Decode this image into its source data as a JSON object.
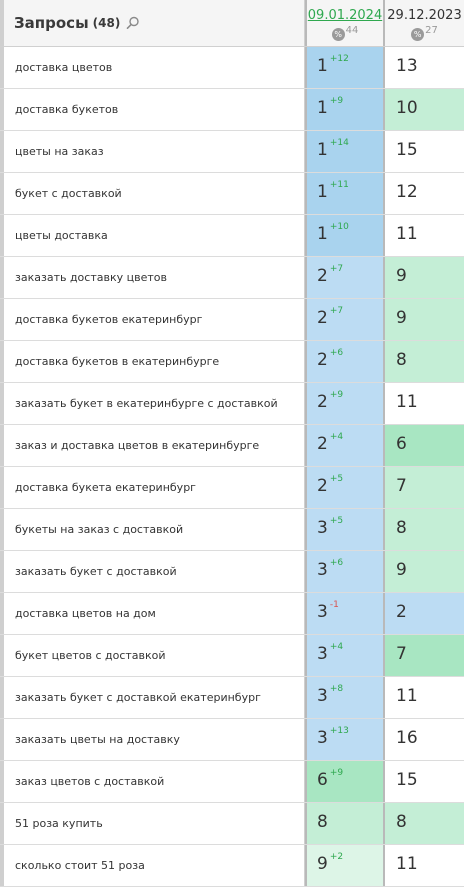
{
  "header": {
    "title": "Запросы",
    "count": "(48)",
    "col1": {
      "date": "09.01.2024",
      "pct_label": "%",
      "pct_value": "44"
    },
    "col2": {
      "date": "29.12.2023",
      "pct_label": "%",
      "pct_value": "27"
    }
  },
  "colors": {
    "top1": "#a9d3ee",
    "top3": "#bcdcf3",
    "top5": "#a8e6c2",
    "top10": "#c4eed6",
    "delta_up": "#2fa84f",
    "delta_down": "#d9534f",
    "active_date": "#2fa84f"
  },
  "rows": [
    {
      "query": "доставка цветов",
      "pos1": "1",
      "delta": "+12",
      "dir": "up",
      "pos2": "13",
      "bg1": "top1",
      "bg2": "none"
    },
    {
      "query": "доставка букетов",
      "pos1": "1",
      "delta": "+9",
      "dir": "up",
      "pos2": "10",
      "bg1": "top1",
      "bg2": "top10"
    },
    {
      "query": "цветы на заказ",
      "pos1": "1",
      "delta": "+14",
      "dir": "up",
      "pos2": "15",
      "bg1": "top1",
      "bg2": "none"
    },
    {
      "query": "букет с доставкой",
      "pos1": "1",
      "delta": "+11",
      "dir": "up",
      "pos2": "12",
      "bg1": "top1",
      "bg2": "none"
    },
    {
      "query": "цветы доставка",
      "pos1": "1",
      "delta": "+10",
      "dir": "up",
      "pos2": "11",
      "bg1": "top1",
      "bg2": "none"
    },
    {
      "query": "заказать доставку цветов",
      "pos1": "2",
      "delta": "+7",
      "dir": "up",
      "pos2": "9",
      "bg1": "top3",
      "bg2": "top10"
    },
    {
      "query": "доставка букетов екатеринбург",
      "pos1": "2",
      "delta": "+7",
      "dir": "up",
      "pos2": "9",
      "bg1": "top3",
      "bg2": "top10"
    },
    {
      "query": "доставка букетов в екатеринбурге",
      "pos1": "2",
      "delta": "+6",
      "dir": "up",
      "pos2": "8",
      "bg1": "top3",
      "bg2": "top10"
    },
    {
      "query": "заказать букет в екатеринбурге с доставкой",
      "pos1": "2",
      "delta": "+9",
      "dir": "up",
      "pos2": "11",
      "bg1": "top3",
      "bg2": "none"
    },
    {
      "query": "заказ и доставка цветов в екатеринбурге",
      "pos1": "2",
      "delta": "+4",
      "dir": "up",
      "pos2": "6",
      "bg1": "top3",
      "bg2": "top5"
    },
    {
      "query": "доставка букета екатеринбург",
      "pos1": "2",
      "delta": "+5",
      "dir": "up",
      "pos2": "7",
      "bg1": "top3",
      "bg2": "top10"
    },
    {
      "query": "букеты на заказ с доставкой",
      "pos1": "3",
      "delta": "+5",
      "dir": "up",
      "pos2": "8",
      "bg1": "top3",
      "bg2": "top10"
    },
    {
      "query": "заказать букет с доставкой",
      "pos1": "3",
      "delta": "+6",
      "dir": "up",
      "pos2": "9",
      "bg1": "top3",
      "bg2": "top10"
    },
    {
      "query": "доставка цветов на дом",
      "pos1": "3",
      "delta": "-1",
      "dir": "down",
      "pos2": "2",
      "bg1": "top3",
      "bg2": "top3"
    },
    {
      "query": "букет цветов с доставкой",
      "pos1": "3",
      "delta": "+4",
      "dir": "up",
      "pos2": "7",
      "bg1": "top3",
      "bg2": "top5"
    },
    {
      "query": "заказать букет с доставкой екатеринбург",
      "pos1": "3",
      "delta": "+8",
      "dir": "up",
      "pos2": "11",
      "bg1": "top3",
      "bg2": "none"
    },
    {
      "query": "заказать цветы на доставку",
      "pos1": "3",
      "delta": "+13",
      "dir": "up",
      "pos2": "16",
      "bg1": "top3",
      "bg2": "none"
    },
    {
      "query": "заказ цветов с доставкой",
      "pos1": "6",
      "delta": "+9",
      "dir": "up",
      "pos2": "15",
      "bg1": "top5",
      "bg2": "none"
    },
    {
      "query": "51 роза купить",
      "pos1": "8",
      "delta": "",
      "dir": "up",
      "pos2": "8",
      "bg1": "top10",
      "bg2": "top10"
    },
    {
      "query": "сколько стоит 51 роза",
      "pos1": "9",
      "delta": "+2",
      "dir": "up",
      "pos2": "11",
      "bg1": "top10b",
      "bg2": "none"
    }
  ]
}
